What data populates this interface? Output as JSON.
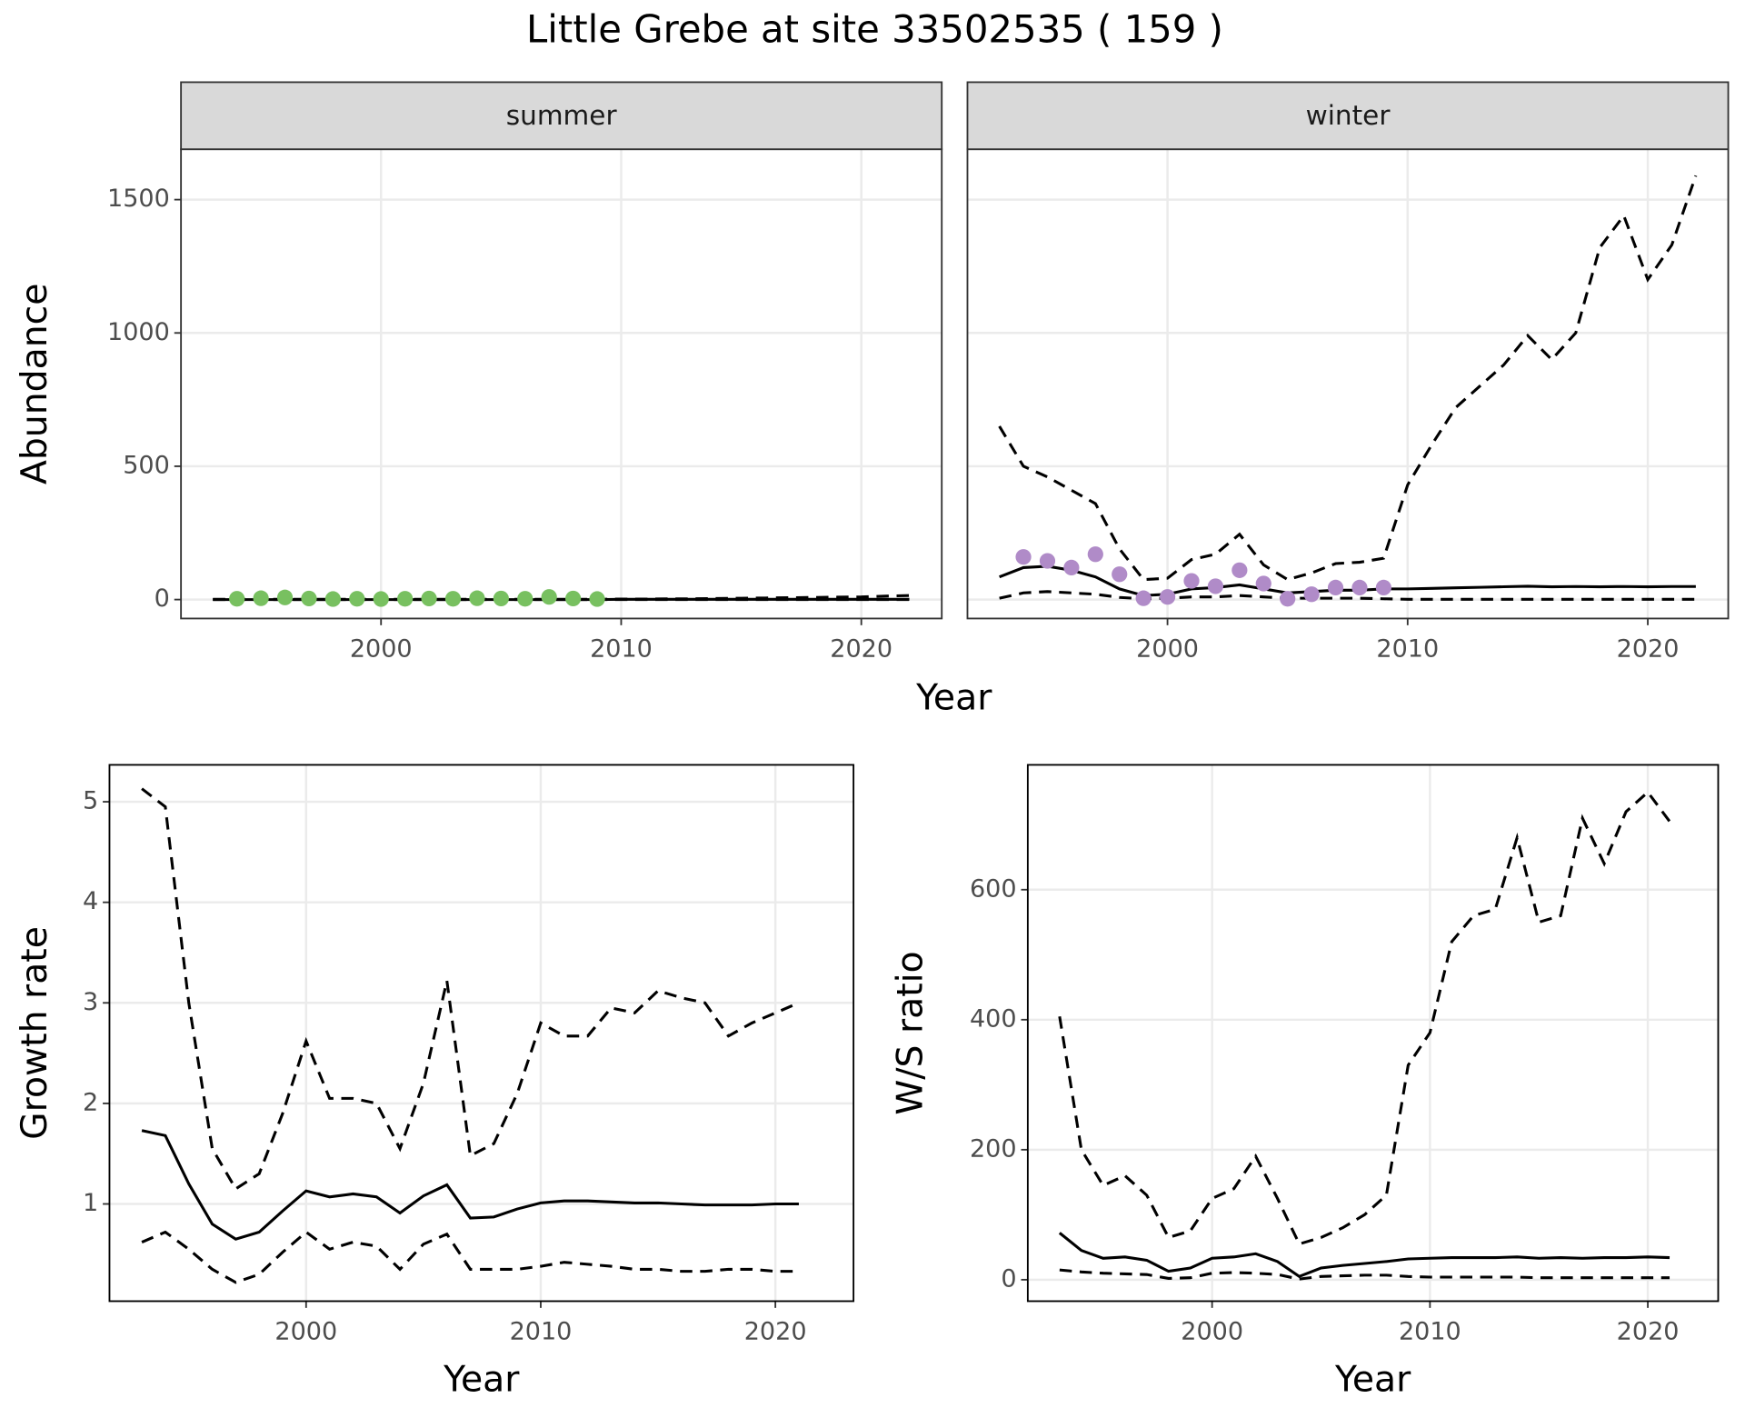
{
  "title": "Little Grebe at site 33502535 ( 159 )",
  "chart_data": [
    {
      "type": "line",
      "facet": "summer",
      "xlabel": "Year",
      "ylabel": "Abundance",
      "x": [
        1993,
        1994,
        1995,
        1996,
        1997,
        1998,
        1999,
        2000,
        2001,
        2002,
        2003,
        2004,
        2005,
        2006,
        2007,
        2008,
        2009,
        2010,
        2011,
        2012,
        2013,
        2014,
        2015,
        2016,
        2017,
        2018,
        2019,
        2020,
        2021,
        2022
      ],
      "xlim": [
        1991.67,
        2023.35
      ],
      "xticks": [
        2000,
        2010,
        2020
      ],
      "ylim": [
        -71,
        1689
      ],
      "yticks": [
        0,
        500,
        1000,
        1500
      ],
      "grid": true,
      "series": [
        {
          "mark": "line",
          "dash": true,
          "color": "#000000",
          "values": [
            1,
            1,
            1,
            1,
            1,
            1,
            1,
            1,
            1,
            1,
            1,
            1,
            1,
            1,
            1,
            1,
            1,
            2,
            2,
            3,
            3,
            4,
            5,
            6,
            7,
            8,
            9,
            10,
            13,
            15
          ]
        },
        {
          "mark": "line",
          "dash": false,
          "color": "#000000",
          "values": [
            0,
            0,
            0,
            0,
            0,
            0,
            0,
            0,
            0,
            0,
            0,
            0,
            0,
            0,
            0,
            0,
            0,
            1,
            1,
            1,
            1,
            1,
            1,
            1,
            1,
            1,
            1,
            1,
            1,
            1
          ]
        },
        {
          "mark": "line",
          "dash": true,
          "color": "#000000",
          "values": [
            0,
            0,
            0,
            0,
            0,
            0,
            0,
            0,
            0,
            0,
            0,
            0,
            0,
            0,
            0,
            0,
            0,
            0,
            0,
            0,
            0,
            0,
            0,
            0,
            0,
            0,
            0,
            0,
            0,
            0
          ]
        },
        {
          "mark": "point",
          "color": "#78c060",
          "values": [
            null,
            3,
            5,
            8,
            4,
            2,
            3,
            2,
            3,
            4,
            3,
            5,
            4,
            3,
            10,
            4,
            2,
            null,
            null,
            null,
            null,
            null,
            null,
            null,
            null,
            null,
            null,
            null,
            null,
            null
          ]
        }
      ]
    },
    {
      "type": "line",
      "facet": "winter",
      "x": [
        1993,
        1994,
        1995,
        1996,
        1997,
        1998,
        1999,
        2000,
        2001,
        2002,
        2003,
        2004,
        2005,
        2006,
        2007,
        2008,
        2009,
        2010,
        2011,
        2012,
        2013,
        2014,
        2015,
        2016,
        2017,
        2018,
        2019,
        2020,
        2021,
        2022
      ],
      "xlim": [
        1991.67,
        2023.35
      ],
      "xticks": [
        2000,
        2010,
        2020
      ],
      "ylim": [
        -71,
        1689
      ],
      "yticks": [
        0,
        500,
        1000,
        1500
      ],
      "grid": true,
      "series": [
        {
          "mark": "line",
          "dash": true,
          "color": "#000000",
          "values": [
            650,
            500,
            460,
            410,
            360,
            190,
            75,
            80,
            150,
            170,
            245,
            130,
            75,
            100,
            135,
            140,
            155,
            430,
            580,
            720,
            800,
            880,
            990,
            900,
            1000,
            1320,
            1440,
            1200,
            1330,
            1590
          ]
        },
        {
          "mark": "line",
          "dash": false,
          "color": "#000000",
          "values": [
            85,
            120,
            125,
            110,
            85,
            40,
            15,
            20,
            40,
            45,
            55,
            40,
            25,
            30,
            35,
            35,
            40,
            40,
            42,
            44,
            46,
            48,
            50,
            48,
            49,
            48,
            49,
            48,
            49,
            49
          ]
        },
        {
          "mark": "line",
          "dash": true,
          "color": "#000000",
          "values": [
            5,
            25,
            30,
            25,
            20,
            8,
            3,
            5,
            10,
            10,
            15,
            10,
            5,
            5,
            5,
            5,
            3,
            1,
            1,
            1,
            1,
            1,
            1,
            1,
            1,
            1,
            1,
            1,
            1,
            1
          ]
        },
        {
          "mark": "point",
          "color": "#b08bc8",
          "values": [
            null,
            160,
            145,
            120,
            170,
            95,
            5,
            10,
            70,
            50,
            110,
            60,
            3,
            20,
            45,
            45,
            45,
            null,
            null,
            null,
            null,
            null,
            null,
            null,
            null,
            null,
            null,
            null,
            null,
            null
          ]
        }
      ]
    },
    {
      "type": "line",
      "xlabel": "Year",
      "ylabel": "Growth rate",
      "x": [
        1993,
        1994,
        1995,
        1996,
        1997,
        1998,
        1999,
        2000,
        2001,
        2002,
        2003,
        2004,
        2005,
        2006,
        2007,
        2008,
        2009,
        2010,
        2011,
        2012,
        2013,
        2014,
        2015,
        2016,
        2017,
        2018,
        2019,
        2020,
        2021
      ],
      "xlim": [
        1991.62,
        2023.33
      ],
      "xticks": [
        2000,
        2010,
        2020
      ],
      "ylim": [
        0.033,
        5.367
      ],
      "yticks": [
        1,
        2,
        3,
        4,
        5
      ],
      "grid": true,
      "series": [
        {
          "mark": "line",
          "dash": true,
          "color": "#000000",
          "values": [
            5.13,
            4.95,
            3.0,
            1.55,
            1.15,
            1.3,
            1.9,
            2.62,
            2.05,
            2.05,
            2.0,
            1.55,
            2.2,
            3.22,
            1.48,
            1.6,
            2.1,
            2.8,
            2.67,
            2.67,
            2.95,
            2.9,
            3.12,
            3.05,
            3.0,
            2.67,
            2.8,
            2.9,
            3.0
          ]
        },
        {
          "mark": "line",
          "dash": false,
          "color": "#000000",
          "values": [
            1.73,
            1.68,
            1.2,
            0.8,
            0.65,
            0.72,
            0.93,
            1.13,
            1.07,
            1.1,
            1.07,
            0.91,
            1.08,
            1.19,
            0.86,
            0.87,
            0.95,
            1.01,
            1.03,
            1.03,
            1.02,
            1.01,
            1.01,
            1.0,
            0.99,
            0.99,
            0.99,
            1.0,
            1.0
          ]
        },
        {
          "mark": "line",
          "dash": true,
          "color": "#000000",
          "values": [
            0.62,
            0.72,
            0.55,
            0.35,
            0.22,
            0.3,
            0.52,
            0.72,
            0.55,
            0.62,
            0.58,
            0.35,
            0.6,
            0.7,
            0.35,
            0.35,
            0.35,
            0.38,
            0.42,
            0.4,
            0.38,
            0.35,
            0.35,
            0.33,
            0.33,
            0.35,
            0.35,
            0.33,
            0.33
          ]
        }
      ]
    },
    {
      "type": "line",
      "xlabel": "Year",
      "ylabel": "W/S ratio",
      "x": [
        1993,
        1994,
        1995,
        1996,
        1997,
        1998,
        1999,
        2000,
        2001,
        2002,
        2003,
        2004,
        2005,
        2006,
        2007,
        2008,
        2009,
        2010,
        2011,
        2012,
        2013,
        2014,
        2015,
        2016,
        2017,
        2018,
        2019,
        2020,
        2021
      ],
      "xlim": [
        1991.54,
        2023.23
      ],
      "xticks": [
        2000,
        2010,
        2020
      ],
      "ylim": [
        -33,
        792
      ],
      "yticks": [
        0,
        200,
        400,
        600
      ],
      "grid": true,
      "series": [
        {
          "mark": "line",
          "dash": true,
          "color": "#000000",
          "values": [
            405,
            200,
            145,
            160,
            130,
            65,
            75,
            125,
            140,
            190,
            125,
            55,
            65,
            80,
            100,
            130,
            330,
            380,
            520,
            560,
            570,
            680,
            550,
            560,
            710,
            640,
            720,
            750,
            705
          ]
        },
        {
          "mark": "line",
          "dash": false,
          "color": "#000000",
          "values": [
            72,
            45,
            33,
            35,
            30,
            13,
            18,
            33,
            35,
            40,
            28,
            5,
            18,
            22,
            25,
            28,
            32,
            33,
            34,
            34,
            34,
            35,
            33,
            34,
            33,
            34,
            34,
            35,
            34
          ]
        },
        {
          "mark": "line",
          "dash": true,
          "color": "#000000",
          "values": [
            15,
            12,
            10,
            9,
            8,
            2,
            3,
            10,
            11,
            10,
            8,
            1,
            5,
            6,
            7,
            7,
            5,
            4,
            4,
            4,
            4,
            4,
            3,
            3,
            3,
            3,
            3,
            3,
            3
          ]
        }
      ]
    }
  ]
}
